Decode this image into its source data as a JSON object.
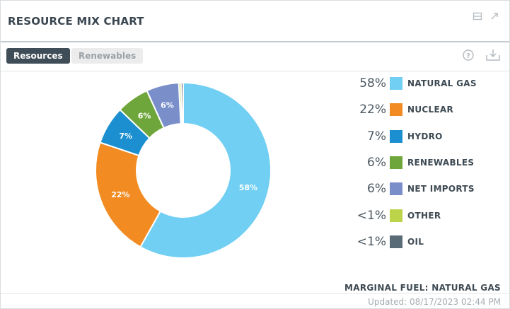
{
  "header": {
    "title": "RESOURCE MIX CHART"
  },
  "window_icons": [
    "restore-icon",
    "expand-icon"
  ],
  "tabs": [
    {
      "label": "Resources",
      "active": true
    },
    {
      "label": "Renewables",
      "active": false
    }
  ],
  "toolbar_icons": [
    "help-icon",
    "download-icon"
  ],
  "chart_data": {
    "type": "pie",
    "donut": true,
    "slices": [
      {
        "label": "NATURAL GAS",
        "value": 58,
        "pct_label": "58%",
        "color": "#71cff3"
      },
      {
        "label": "NUCLEAR",
        "value": 22,
        "pct_label": "22%",
        "color": "#f28b22"
      },
      {
        "label": "HYDRO",
        "value": 7,
        "pct_label": "7%",
        "color": "#1b8fcf"
      },
      {
        "label": "RENEWABLES",
        "value": 6,
        "pct_label": "6%",
        "color": "#6ea63c"
      },
      {
        "label": "NET IMPORTS",
        "value": 6,
        "pct_label": "6%",
        "color": "#7a8fca"
      },
      {
        "label": "OTHER",
        "value": 0.4,
        "pct_label": "<1%",
        "color": "#bcd44a"
      },
      {
        "label": "OIL",
        "value": 0.4,
        "pct_label": "<1%",
        "color": "#5a6b78"
      }
    ],
    "legend_placement": "right"
  },
  "marginal_fuel": "MARGINAL FUEL: NATURAL GAS",
  "updated": "Updated: 08/17/2023 02:44 PM"
}
